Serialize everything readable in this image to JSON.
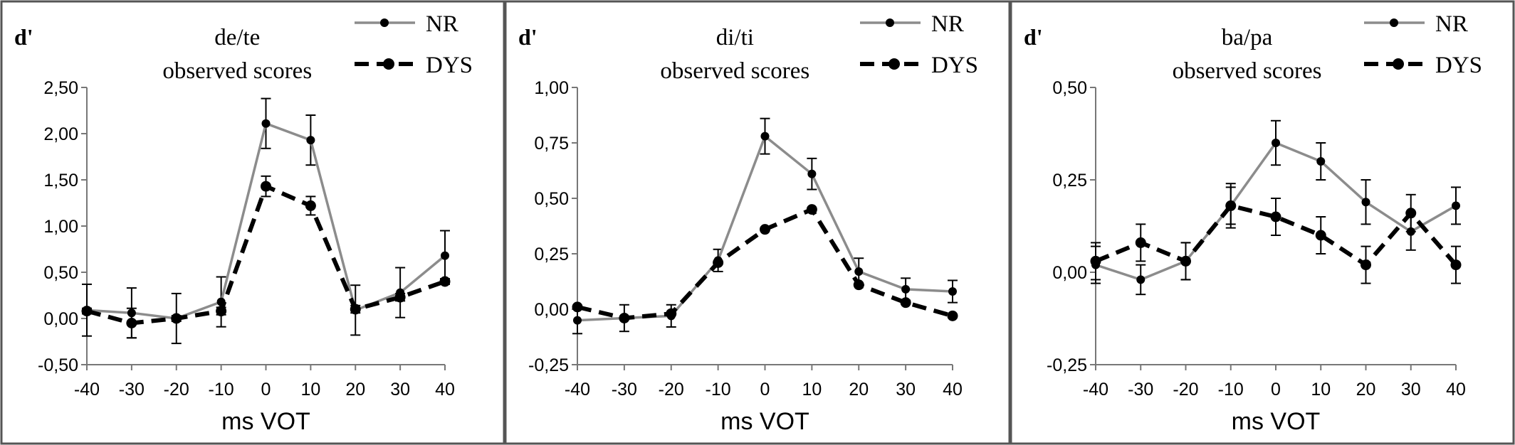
{
  "chart_data": [
    {
      "type": "line",
      "title": "de/te",
      "subtitle": "observed scores",
      "ylabel": "d'",
      "xlabel": "ms VOT",
      "x": [
        -40,
        -30,
        -20,
        -10,
        0,
        10,
        20,
        30,
        40
      ],
      "x_tick_labels": [
        "-40",
        "-30",
        "-20",
        "-10",
        "0",
        "10",
        "20",
        "30",
        "40"
      ],
      "ylim": [
        -0.5,
        2.5
      ],
      "y_ticks": [
        -0.5,
        0,
        0.5,
        1,
        1.5,
        2,
        2.5
      ],
      "y_tick_labels": [
        "-0,50",
        "0,00",
        "0,50",
        "1,00",
        "1,50",
        "2,00",
        "2,50"
      ],
      "grid": false,
      "legend_position": "top-right",
      "series": [
        {
          "name": "NR",
          "values": [
            0.09,
            0.06,
            0.0,
            0.18,
            2.11,
            1.93,
            0.09,
            0.28,
            0.68
          ],
          "errors": [
            0.28,
            0.27,
            0.27,
            0.27,
            0.27,
            0.27,
            0.27,
            0.27,
            0.27
          ]
        },
        {
          "name": "DYS",
          "values": [
            0.08,
            -0.05,
            0.0,
            0.08,
            1.43,
            1.22,
            0.1,
            0.23,
            0.4
          ],
          "errors": [
            0.03,
            0.16,
            0.03,
            0.04,
            0.11,
            0.1,
            0.04,
            0.04,
            0.03
          ]
        }
      ]
    },
    {
      "type": "line",
      "title": "di/ti",
      "subtitle": "observed scores",
      "ylabel": "d'",
      "xlabel": "ms VOT",
      "x": [
        -40,
        -30,
        -20,
        -10,
        0,
        10,
        20,
        30,
        40
      ],
      "x_tick_labels": [
        "-40",
        "-30",
        "-20",
        "-10",
        "0",
        "10",
        "20",
        "30",
        "40"
      ],
      "ylim": [
        -0.25,
        1.0
      ],
      "y_ticks": [
        -0.25,
        0,
        0.25,
        0.5,
        0.75,
        1
      ],
      "y_tick_labels": [
        "-0,25",
        "0,00",
        "0,25",
        "0,50",
        "0,75",
        "1,00"
      ],
      "grid": false,
      "legend_position": "top-right",
      "series": [
        {
          "name": "NR",
          "values": [
            -0.05,
            -0.04,
            -0.03,
            0.22,
            0.78,
            0.61,
            0.17,
            0.09,
            0.08
          ],
          "errors": [
            0.06,
            0.06,
            0.05,
            0.05,
            0.08,
            0.07,
            0.06,
            0.05,
            0.05
          ]
        },
        {
          "name": "DYS",
          "values": [
            0.01,
            -0.04,
            -0.02,
            0.21,
            0.36,
            0.45,
            0.11,
            0.03,
            -0.03
          ]
        }
      ]
    },
    {
      "type": "line",
      "title": "ba/pa",
      "subtitle": "observed scores",
      "ylabel": "d'",
      "xlabel": "ms VOT",
      "x": [
        -40,
        -30,
        -20,
        -10,
        0,
        10,
        20,
        30,
        40
      ],
      "x_tick_labels": [
        "-40",
        "-30",
        "-20",
        "-10",
        "0",
        "10",
        "20",
        "30",
        "40"
      ],
      "ylim": [
        -0.25,
        0.5
      ],
      "y_ticks": [
        -0.25,
        0,
        0.25,
        0.5
      ],
      "y_tick_labels": [
        "-0,25",
        "0,00",
        "0,25",
        "0,50"
      ],
      "grid": false,
      "legend_position": "top-right",
      "series": [
        {
          "name": "NR",
          "values": [
            0.02,
            -0.02,
            0.03,
            0.18,
            0.35,
            0.3,
            0.19,
            0.11,
            0.18
          ],
          "errors": [
            0.05,
            0.04,
            0.05,
            0.06,
            0.06,
            0.05,
            0.06,
            0.05,
            0.05
          ]
        },
        {
          "name": "DYS",
          "values": [
            0.03,
            0.08,
            0.03,
            0.18,
            0.15,
            0.1,
            0.02,
            0.16,
            0.02
          ],
          "errors": [
            0.05,
            0.05,
            0.05,
            0.05,
            0.05,
            0.05,
            0.05,
            0.05,
            0.05
          ]
        }
      ]
    }
  ],
  "colors": {
    "nr_line": "#8c8c8c",
    "dys_line": "#000000",
    "frame": "#555555",
    "axis": "#777777"
  }
}
